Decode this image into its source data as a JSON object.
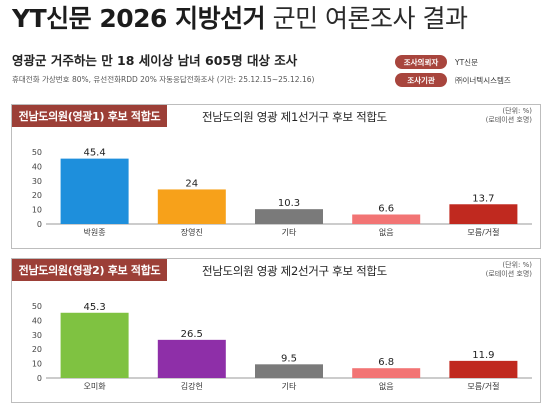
{
  "header": {
    "title_bold": "YT신문 2026 지방선거",
    "title_light": "군민 여론조사 결과",
    "subtitle": "영광군 거주하는 만 18 세이상 남녀 605명 대상 조사",
    "method": "휴대전화 가상번호 80%, 유선전화RDD 20% 자동응답전화조사 (기간: 25.12.15~25.12.16)",
    "client_label": "조사의뢰자",
    "client_value": "YT신문",
    "agency_label": "조사기관",
    "agency_value": "㈜이너텍시스템즈"
  },
  "chart_data": [
    {
      "type": "bar",
      "tag": "전남도의원(영광1) 후보 적합도",
      "title": "전남도의원 영광 제1선거구 후보 적합도",
      "unit_line1": "(단위: %)",
      "unit_line2": "(로테이션 호명)",
      "categories": [
        "박원종",
        "장영진",
        "기타",
        "없음",
        "모름/거절"
      ],
      "values": [
        45.4,
        24,
        10.3,
        6.6,
        13.7
      ],
      "value_labels": [
        "45.4",
        "24",
        "10.3",
        "6.6",
        "13.7"
      ],
      "colors": [
        "#1e8fdc",
        "#f7a11a",
        "#7a7a7a",
        "#f27474",
        "#c0291f"
      ],
      "yticks": [
        0,
        10,
        20,
        30,
        40,
        50
      ],
      "ylim": [
        0,
        50
      ]
    },
    {
      "type": "bar",
      "tag": "전남도의원(영광2) 후보 적합도",
      "title": "전남도의원 영광 제2선거구 후보 적합도",
      "unit_line1": "(단위: %)",
      "unit_line2": "(로테이션 호명)",
      "categories": [
        "오미화",
        "김강헌",
        "기타",
        "없음",
        "모름/거절"
      ],
      "values": [
        45.3,
        26.5,
        9.5,
        6.8,
        11.9
      ],
      "value_labels": [
        "45.3",
        "26.5",
        "9.5",
        "6.8",
        "11.9"
      ],
      "colors": [
        "#7fc241",
        "#8e2fa8",
        "#7a7a7a",
        "#f27474",
        "#c0291f"
      ],
      "yticks": [
        0,
        10,
        20,
        30,
        40,
        50
      ],
      "ylim": [
        0,
        50
      ]
    }
  ]
}
